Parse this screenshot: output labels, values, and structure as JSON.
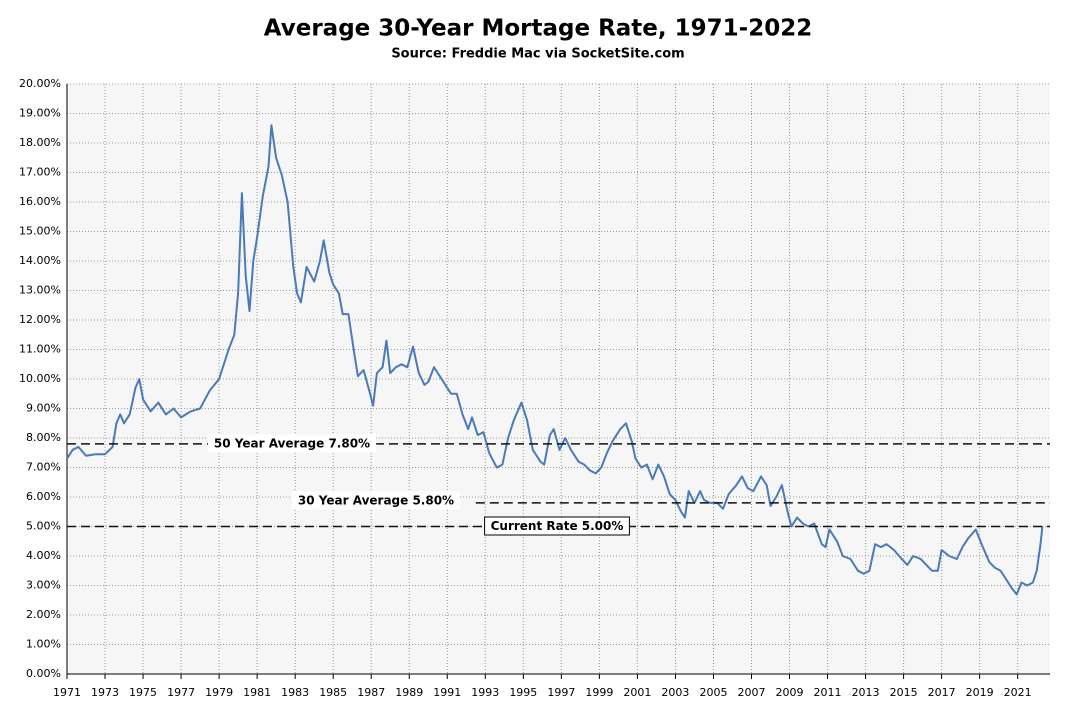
{
  "chart_data": {
    "type": "line",
    "title": "Average 30-Year Mortage Rate, 1971-2022",
    "subtitle": "Source: Freddie Mac via SocketSite.com",
    "color": "#4a7ab8",
    "grid": true,
    "xlim": [
      1971,
      2022.7
    ],
    "ylim": [
      0,
      20
    ],
    "xticks": [
      1971,
      1973,
      1975,
      1977,
      1979,
      1981,
      1983,
      1985,
      1987,
      1989,
      1991,
      1993,
      1995,
      1997,
      1999,
      2001,
      2003,
      2005,
      2007,
      2009,
      2011,
      2013,
      2015,
      2017,
      2019,
      2021
    ],
    "yticks": [
      {
        "value": 0,
        "label": "0.00%"
      },
      {
        "value": 1,
        "label": "1.00%"
      },
      {
        "value": 2,
        "label": "2.00%"
      },
      {
        "value": 3,
        "label": "3.00%"
      },
      {
        "value": 4,
        "label": "4.00%"
      },
      {
        "value": 5,
        "label": "5.00%"
      },
      {
        "value": 6,
        "label": "6.00%"
      },
      {
        "value": 7,
        "label": "7.00%"
      },
      {
        "value": 8,
        "label": "8.00%"
      },
      {
        "value": 9,
        "label": "9.00%"
      },
      {
        "value": 10,
        "label": "10.00%"
      },
      {
        "value": 11,
        "label": "11.00%"
      },
      {
        "value": 12,
        "label": "12.00%"
      },
      {
        "value": 13,
        "label": "13.00%"
      },
      {
        "value": 14,
        "label": "14.00%"
      },
      {
        "value": 15,
        "label": "15.00%"
      },
      {
        "value": 16,
        "label": "16.00%"
      },
      {
        "value": 17,
        "label": "17.00%"
      },
      {
        "value": 18,
        "label": "18.00%"
      },
      {
        "value": 19,
        "label": "19.00%"
      },
      {
        "value": 20,
        "label": "20.00%"
      }
    ],
    "x": [
      1971.0,
      1971.3,
      1971.6,
      1972.0,
      1972.5,
      1973.0,
      1973.4,
      1973.6,
      1973.8,
      1974.0,
      1974.3,
      1974.6,
      1974.8,
      1975.0,
      1975.4,
      1975.8,
      1976.2,
      1976.6,
      1977.0,
      1977.5,
      1978.0,
      1978.5,
      1979.0,
      1979.5,
      1979.8,
      1980.0,
      1980.2,
      1980.4,
      1980.6,
      1980.8,
      1981.0,
      1981.3,
      1981.6,
      1981.75,
      1982.0,
      1982.3,
      1982.6,
      1982.9,
      1983.1,
      1983.3,
      1983.6,
      1984.0,
      1984.3,
      1984.5,
      1984.8,
      1985.0,
      1985.3,
      1985.5,
      1985.8,
      1986.1,
      1986.3,
      1986.6,
      1986.9,
      1987.1,
      1987.3,
      1987.6,
      1987.8,
      1988.0,
      1988.3,
      1988.6,
      1988.9,
      1989.2,
      1989.5,
      1989.8,
      1990.0,
      1990.3,
      1990.6,
      1990.9,
      1991.2,
      1991.5,
      1991.8,
      1992.1,
      1992.3,
      1992.6,
      1992.9,
      1993.2,
      1993.6,
      1993.9,
      1994.2,
      1994.5,
      1994.9,
      1995.2,
      1995.5,
      1995.9,
      1996.1,
      1996.4,
      1996.6,
      1996.9,
      1997.2,
      1997.5,
      1997.9,
      1998.2,
      1998.5,
      1998.8,
      1999.1,
      1999.4,
      1999.7,
      2000.1,
      2000.4,
      2000.7,
      2000.9,
      2001.2,
      2001.5,
      2001.8,
      2002.1,
      2002.4,
      2002.7,
      2003.0,
      2003.3,
      2003.5,
      2003.7,
      2004.0,
      2004.3,
      2004.5,
      2004.8,
      2005.2,
      2005.5,
      2005.8,
      2006.2,
      2006.5,
      2006.8,
      2007.1,
      2007.5,
      2007.8,
      2008.0,
      2008.3,
      2008.6,
      2008.9,
      2009.1,
      2009.4,
      2009.7,
      2010.0,
      2010.3,
      2010.7,
      2010.9,
      2011.1,
      2011.5,
      2011.8,
      2012.2,
      2012.6,
      2012.9,
      2013.2,
      2013.5,
      2013.8,
      2014.1,
      2014.5,
      2014.9,
      2015.2,
      2015.5,
      2015.9,
      2016.2,
      2016.5,
      2016.8,
      2017.0,
      2017.4,
      2017.8,
      2018.1,
      2018.4,
      2018.8,
      2019.1,
      2019.5,
      2019.8,
      2020.1,
      2020.4,
      2020.7,
      2020.95,
      2021.2,
      2021.5,
      2021.8,
      2022.0,
      2022.2,
      2022.3
    ],
    "values": [
      7.3,
      7.6,
      7.7,
      7.4,
      7.45,
      7.45,
      7.7,
      8.5,
      8.8,
      8.5,
      8.8,
      9.7,
      10.0,
      9.3,
      8.9,
      9.2,
      8.8,
      9.0,
      8.7,
      8.9,
      9.0,
      9.6,
      10.0,
      11.0,
      11.5,
      12.9,
      16.3,
      13.5,
      12.3,
      14.0,
      14.8,
      16.2,
      17.2,
      18.6,
      17.5,
      16.9,
      16.0,
      13.8,
      12.9,
      12.6,
      13.8,
      13.3,
      14.0,
      14.7,
      13.6,
      13.2,
      12.9,
      12.2,
      12.2,
      10.9,
      10.1,
      10.3,
      9.6,
      9.1,
      10.2,
      10.4,
      11.3,
      10.2,
      10.4,
      10.5,
      10.4,
      11.1,
      10.2,
      9.8,
      9.9,
      10.4,
      10.1,
      9.8,
      9.5,
      9.5,
      8.8,
      8.3,
      8.7,
      8.1,
      8.2,
      7.5,
      7.0,
      7.1,
      8.0,
      8.6,
      9.2,
      8.6,
      7.6,
      7.2,
      7.1,
      8.1,
      8.3,
      7.6,
      8.0,
      7.6,
      7.2,
      7.1,
      6.9,
      6.8,
      7.0,
      7.5,
      7.9,
      8.3,
      8.5,
      7.9,
      7.3,
      7.0,
      7.1,
      6.6,
      7.1,
      6.7,
      6.1,
      5.9,
      5.5,
      5.3,
      6.2,
      5.8,
      6.2,
      5.9,
      5.8,
      5.8,
      5.6,
      6.1,
      6.4,
      6.7,
      6.3,
      6.2,
      6.7,
      6.4,
      5.7,
      6.0,
      6.4,
      5.5,
      5.0,
      5.3,
      5.1,
      5.0,
      5.1,
      4.4,
      4.3,
      4.9,
      4.5,
      4.0,
      3.9,
      3.5,
      3.4,
      3.5,
      4.4,
      4.3,
      4.4,
      4.2,
      3.9,
      3.7,
      4.0,
      3.9,
      3.7,
      3.5,
      3.5,
      4.2,
      4.0,
      3.9,
      4.3,
      4.6,
      4.9,
      4.4,
      3.8,
      3.6,
      3.5,
      3.2,
      2.9,
      2.7,
      3.1,
      3.0,
      3.1,
      3.5,
      4.4,
      5.0
    ],
    "annotations": [
      {
        "label": "50 Year Average 7.80%",
        "value": 7.8,
        "xstart": 1971
      },
      {
        "label": "30 Year Average 5.80%",
        "value": 5.8,
        "xstart": 1992.5
      },
      {
        "label": "Current Rate 5.00%",
        "value": 5.0,
        "xstart": 1971
      }
    ]
  }
}
